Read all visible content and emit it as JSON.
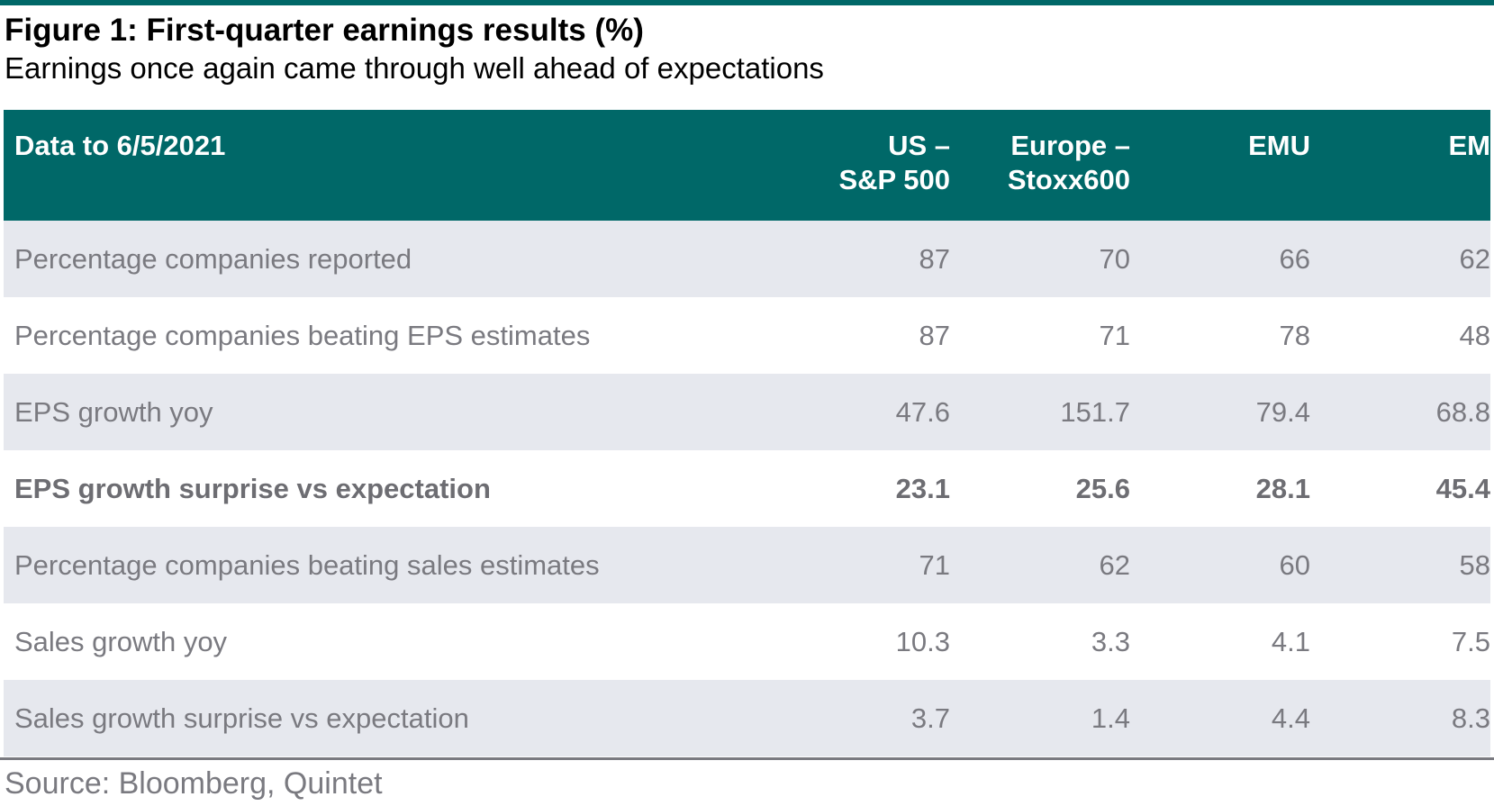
{
  "title": "Figure 1: First-quarter earnings results (%)",
  "subtitle": "Earnings once again came through well ahead of expectations",
  "source": "Source: Bloomberg, Quintet",
  "colors": {
    "header_bg": "#006868",
    "header_text": "#ffffff",
    "row_shade": "#e6e8ee",
    "body_text": "#7a7a80"
  },
  "chart_data": {
    "type": "table",
    "title": "Figure 1: First-quarter earnings results (%)",
    "subtitle": "Earnings once again came through well ahead of expectations",
    "header": {
      "label": "Data to 6/5/2021",
      "columns": [
        {
          "lines": [
            "US –",
            "S&P 500"
          ]
        },
        {
          "lines": [
            "Europe –",
            "Stoxx600"
          ]
        },
        {
          "lines": [
            "EMU"
          ]
        },
        {
          "lines": [
            "EM"
          ]
        }
      ]
    },
    "rows": [
      {
        "label": "Percentage companies reported",
        "values": [
          "87",
          "70",
          "66",
          "62"
        ],
        "bold": false
      },
      {
        "label": "Percentage companies beating EPS estimates",
        "values": [
          "87",
          "71",
          "78",
          "48"
        ],
        "bold": false
      },
      {
        "label": "EPS growth yoy",
        "values": [
          "47.6",
          "151.7",
          "79.4",
          "68.8"
        ],
        "bold": false
      },
      {
        "label": "EPS growth surprise vs expectation",
        "values": [
          "23.1",
          "25.6",
          "28.1",
          "45.4"
        ],
        "bold": true
      },
      {
        "label": "Percentage companies beating sales estimates",
        "values": [
          "71",
          "62",
          "60",
          "58"
        ],
        "bold": false
      },
      {
        "label": "Sales growth yoy",
        "values": [
          "10.3",
          "3.3",
          "4.1",
          "7.5"
        ],
        "bold": false
      },
      {
        "label": "Sales growth surprise vs expectation",
        "values": [
          "3.7",
          "1.4",
          "4.4",
          "8.3"
        ],
        "bold": false
      }
    ],
    "source": "Source: Bloomberg, Quintet"
  }
}
